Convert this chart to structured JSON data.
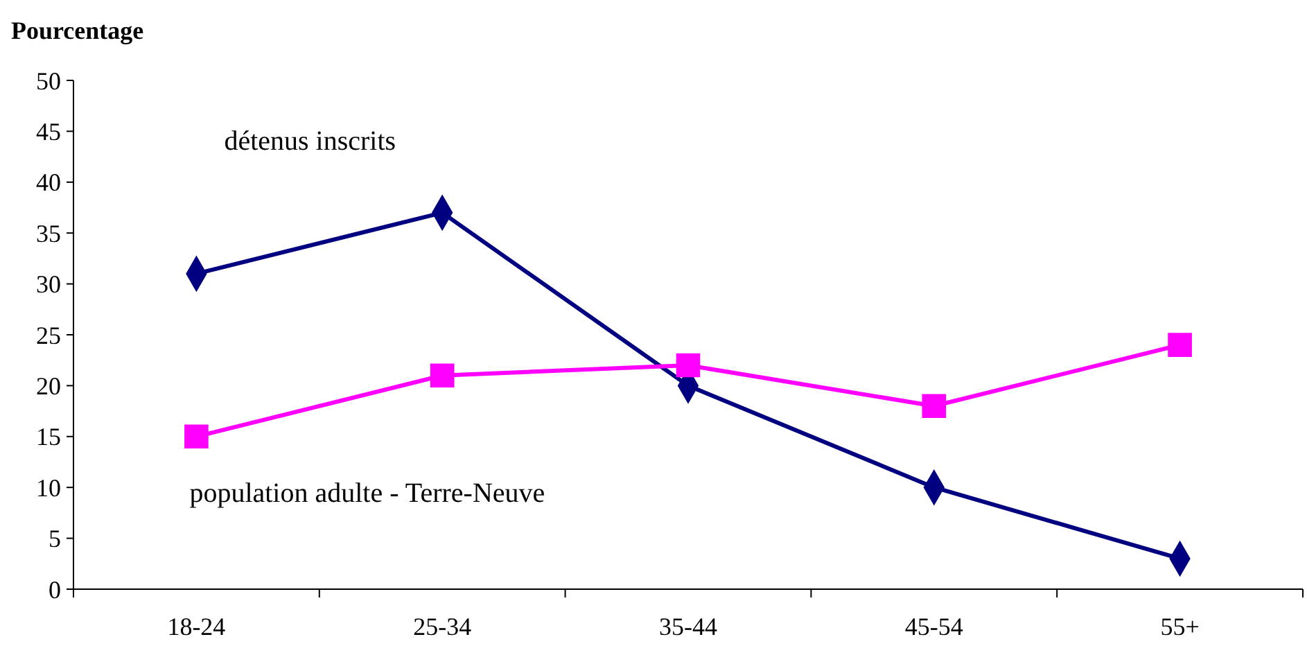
{
  "chart_data": {
    "type": "line",
    "ylabel": "Pourcentage",
    "categories": [
      "18-24",
      "25-34",
      "35-44",
      "45-54",
      "55+"
    ],
    "ylim": [
      0,
      50
    ],
    "yticks": [
      0,
      5,
      10,
      15,
      20,
      25,
      30,
      35,
      40,
      45,
      50
    ],
    "grid": false,
    "series": [
      {
        "name": "détenus inscrits",
        "color": "#000080",
        "marker": "diamond",
        "values": [
          31,
          37,
          20,
          10,
          3
        ]
      },
      {
        "name": "population adulte - Terre-Neuve",
        "color": "#ff00ff",
        "marker": "square",
        "values": [
          15,
          21,
          22,
          18,
          24
        ]
      }
    ]
  }
}
